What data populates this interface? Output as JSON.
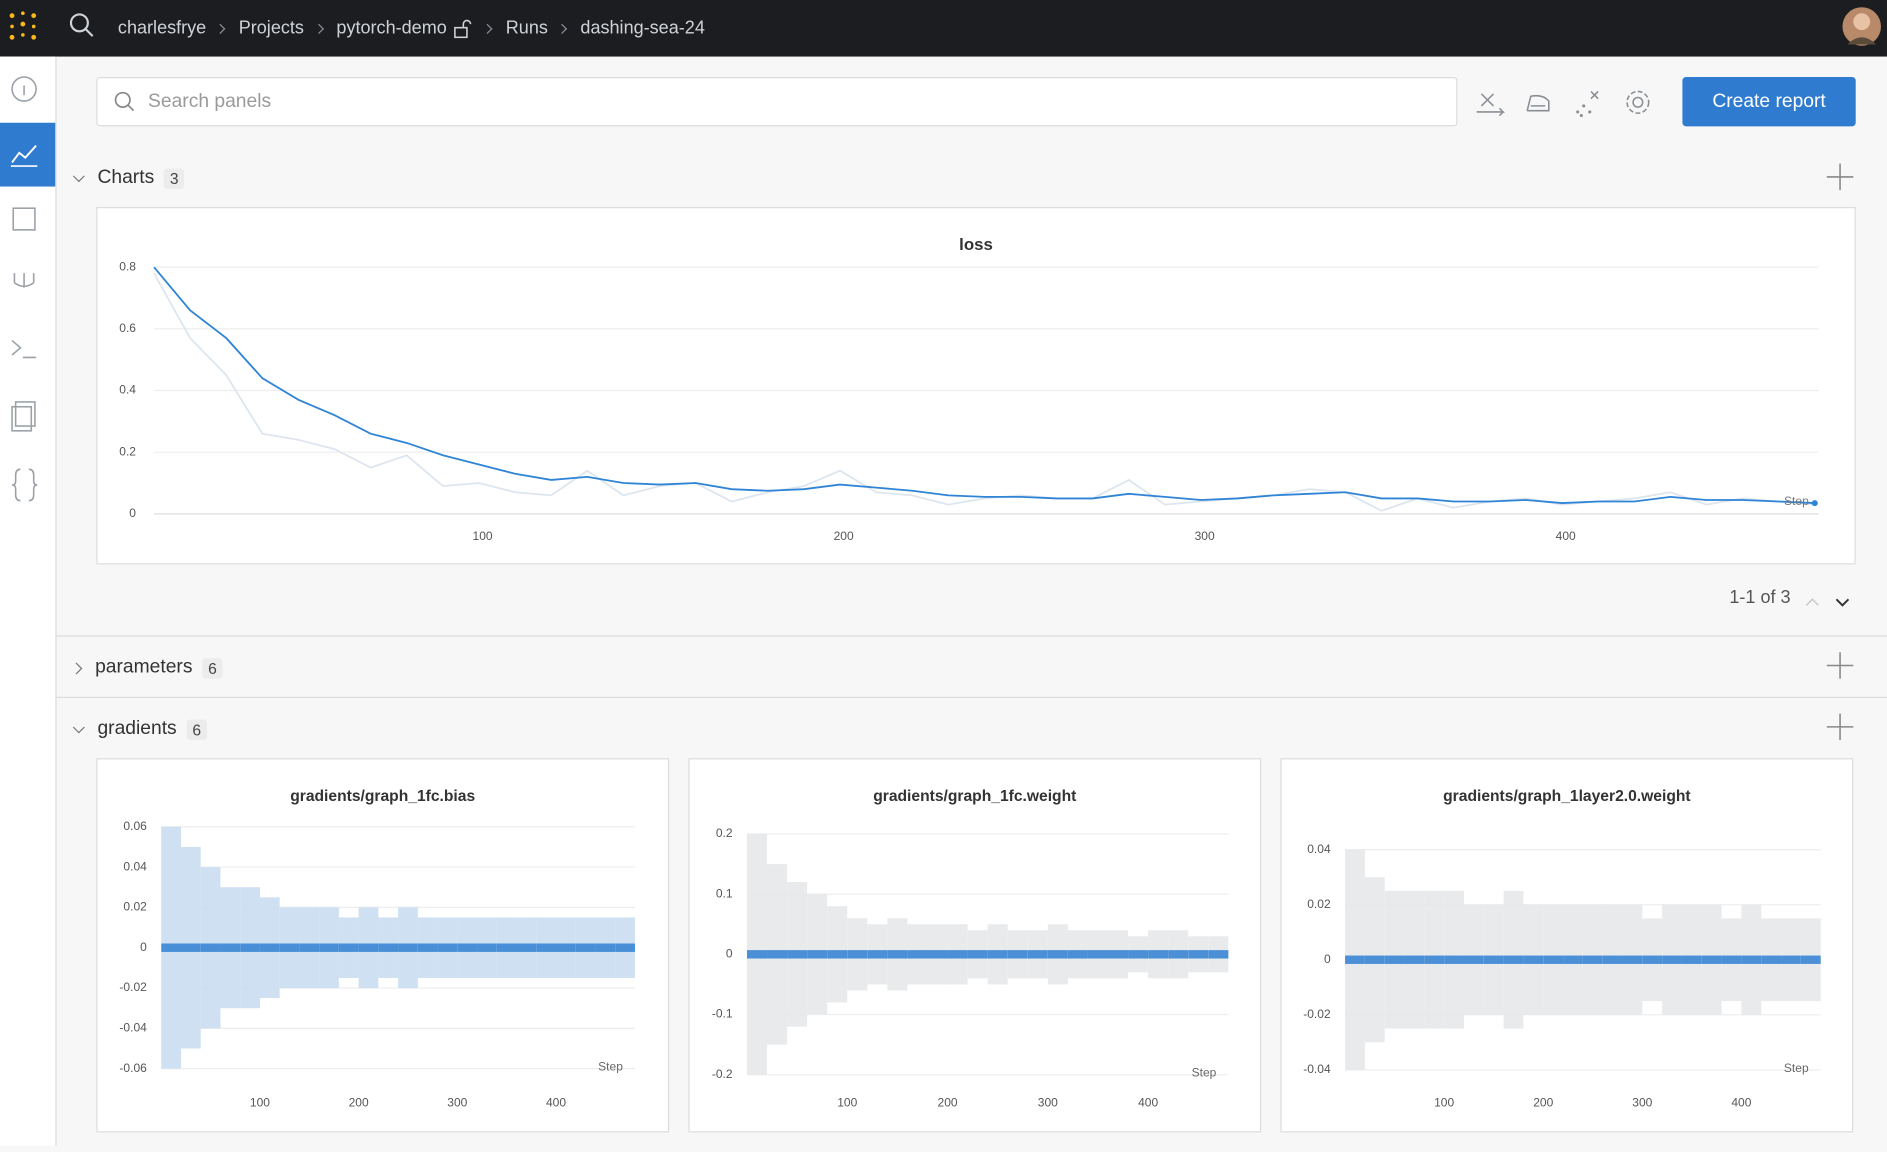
{
  "nav": {
    "breadcrumbs": [
      "charlesfrye",
      "Projects",
      "pytorch-demo",
      "Runs",
      "dashing-sea-24"
    ]
  },
  "toolbar": {
    "search_placeholder": "Search panels",
    "button": "Create report"
  },
  "sections": [
    {
      "name": "Charts",
      "count": 3
    },
    {
      "name": "parameters",
      "count": 6
    },
    {
      "name": "gradients",
      "count": 6
    }
  ],
  "pager": "1-1 of 3",
  "chart_data": [
    {
      "type": "line",
      "title": "loss",
      "xlabel": "Step",
      "x": [
        9,
        19,
        29,
        39,
        49,
        59,
        69,
        79,
        89,
        99,
        109,
        119,
        129,
        139,
        149,
        159,
        169,
        179,
        189,
        199,
        209,
        219,
        229,
        239,
        249,
        259,
        269,
        279,
        289,
        299,
        309,
        319,
        329,
        339,
        349,
        359,
        369,
        379,
        389,
        399,
        409,
        419,
        429,
        439,
        449,
        459,
        469
      ],
      "series": [
        {
          "color": "#dde6ef",
          "values": [
            0.78,
            0.57,
            0.45,
            0.26,
            0.24,
            0.21,
            0.15,
            0.19,
            0.09,
            0.1,
            0.07,
            0.06,
            0.14,
            0.06,
            0.09,
            0.1,
            0.04,
            0.07,
            0.09,
            0.14,
            0.07,
            0.06,
            0.03,
            0.05,
            0.06,
            0.05,
            0.05,
            0.11,
            0.03,
            0.04,
            0.05,
            0.06,
            0.08,
            0.07,
            0.01,
            0.05,
            0.02,
            0.04,
            0.05,
            0.03,
            0.04,
            0.05,
            0.07,
            0.03,
            0.05,
            0.04,
            0.03
          ]
        },
        {
          "color": "#2f84d6",
          "values": [
            0.8,
            0.66,
            0.57,
            0.44,
            0.37,
            0.32,
            0.26,
            0.23,
            0.19,
            0.16,
            0.13,
            0.11,
            0.12,
            0.1,
            0.095,
            0.1,
            0.08,
            0.075,
            0.08,
            0.095,
            0.085,
            0.075,
            0.06,
            0.055,
            0.055,
            0.05,
            0.05,
            0.065,
            0.055,
            0.045,
            0.05,
            0.06,
            0.065,
            0.07,
            0.05,
            0.05,
            0.04,
            0.04,
            0.045,
            0.035,
            0.04,
            0.04,
            0.055,
            0.045,
            0.045,
            0.04,
            0.035
          ]
        }
      ],
      "xlim": [
        9,
        470
      ],
      "ylim": [
        0,
        0.8
      ],
      "xticks": [
        100,
        200,
        300,
        400
      ],
      "yticks": [
        0,
        0.2,
        0.4,
        0.6,
        0.8
      ],
      "grid": true
    },
    {
      "type": "heatmap",
      "title": "gradients/graph_1fc.bias",
      "xlabel": "Step",
      "color": "#c5daf0",
      "band_color": "#3a86d4",
      "bins": [
        0,
        20,
        40,
        60,
        80,
        100,
        120,
        140,
        160,
        180,
        200,
        220,
        240,
        260,
        280,
        300,
        320,
        340,
        360,
        380,
        400,
        420,
        440,
        460,
        480
      ],
      "spread": [
        0.06,
        0.05,
        0.04,
        0.03,
        0.03,
        0.025,
        0.02,
        0.02,
        0.02,
        0.015,
        0.02,
        0.015,
        0.02,
        0.015,
        0.015,
        0.015,
        0.015,
        0.015,
        0.015,
        0.015,
        0.015,
        0.015,
        0.015,
        0.015
      ],
      "xlim": [
        0,
        480
      ],
      "ylim": [
        -0.06,
        0.06
      ],
      "xticks": [
        100,
        200,
        300,
        400
      ],
      "yticks": [
        0.06,
        0.04,
        0.02,
        0,
        -0.02,
        -0.04,
        -0.06
      ],
      "grid": true
    },
    {
      "type": "heatmap",
      "title": "gradients/graph_1fc.weight",
      "xlabel": "Step",
      "color": "#e4e6e9",
      "band_color": "#3a86d4",
      "bins": [
        0,
        20,
        40,
        60,
        80,
        100,
        120,
        140,
        160,
        180,
        200,
        220,
        240,
        260,
        280,
        300,
        320,
        340,
        360,
        380,
        400,
        420,
        440,
        460,
        480
      ],
      "spread": [
        0.2,
        0.15,
        0.12,
        0.1,
        0.08,
        0.06,
        0.05,
        0.06,
        0.05,
        0.05,
        0.05,
        0.04,
        0.05,
        0.04,
        0.04,
        0.05,
        0.04,
        0.04,
        0.04,
        0.03,
        0.04,
        0.04,
        0.03,
        0.03
      ],
      "xlim": [
        0,
        480
      ],
      "ylim": [
        -0.2,
        0.2
      ],
      "xticks": [
        100,
        200,
        300,
        400
      ],
      "yticks": [
        0.2,
        0.1,
        0,
        -0.1,
        -0.2
      ],
      "grid": true
    },
    {
      "type": "heatmap",
      "title": "gradients/graph_1layer2.0.weight",
      "xlabel": "Step",
      "color": "#e4e6e9",
      "band_color": "#3a86d4",
      "bins": [
        0,
        20,
        40,
        60,
        80,
        100,
        120,
        140,
        160,
        180,
        200,
        220,
        240,
        260,
        280,
        300,
        320,
        340,
        360,
        380,
        400,
        420,
        440,
        460,
        480
      ],
      "spread": [
        0.04,
        0.03,
        0.025,
        0.025,
        0.025,
        0.025,
        0.02,
        0.02,
        0.025,
        0.02,
        0.02,
        0.02,
        0.02,
        0.02,
        0.02,
        0.015,
        0.02,
        0.02,
        0.02,
        0.015,
        0.02,
        0.015,
        0.015,
        0.015
      ],
      "xlim": [
        0,
        480
      ],
      "ylim": [
        -0.04,
        0.04
      ],
      "xticks": [
        100,
        200,
        300,
        400
      ],
      "yticks": [
        0.04,
        0.02,
        0,
        -0.02,
        -0.04
      ],
      "grid": true
    }
  ]
}
